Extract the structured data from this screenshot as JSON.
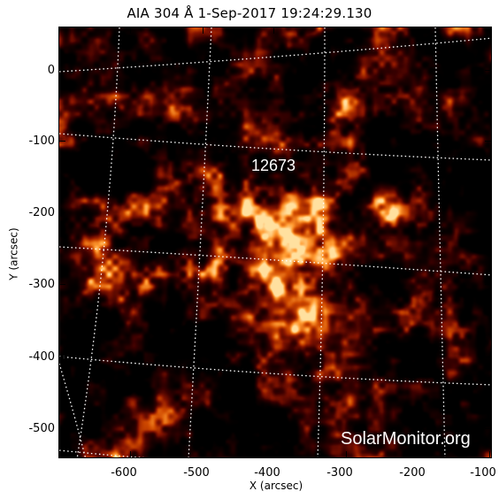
{
  "figure": {
    "title": "AIA 304 Å   1-Sep-2017 19:24:29.130",
    "xlabel": "X (arcsec)",
    "ylabel": "Y (arcsec)"
  },
  "axes": {
    "x_ticks": [
      "-600",
      "-500",
      "-400",
      "-300",
      "-200",
      "-100"
    ],
    "y_ticks": [
      "0",
      "-100",
      "-200",
      "-300",
      "-400",
      "-500"
    ],
    "x_range_arcsec": [
      -690,
      -95
    ],
    "y_range_arcsec": [
      -545,
      60
    ]
  },
  "image": {
    "description_type": "solar EUV image",
    "colormap": [
      "#000000",
      "#3a0000",
      "#8a1500",
      "#d04a00",
      "#ff9a30",
      "#ffe0a0"
    ],
    "grid": "heliographic lat/lon dotted white",
    "active_region_label": "12673",
    "watermark": "SolarMonitor.org"
  }
}
